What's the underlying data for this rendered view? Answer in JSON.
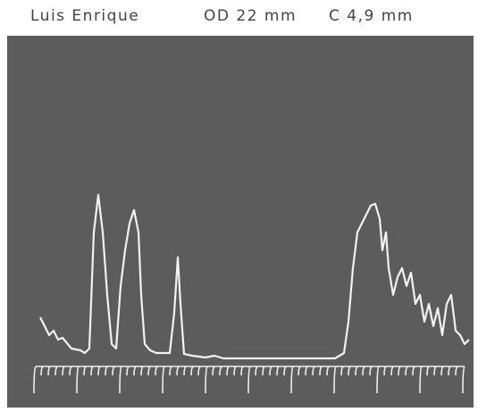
{
  "header": {
    "name": "Luis Enrique",
    "eye": "OD 22 mm",
    "measure": "C 4,9 mm"
  }
}
